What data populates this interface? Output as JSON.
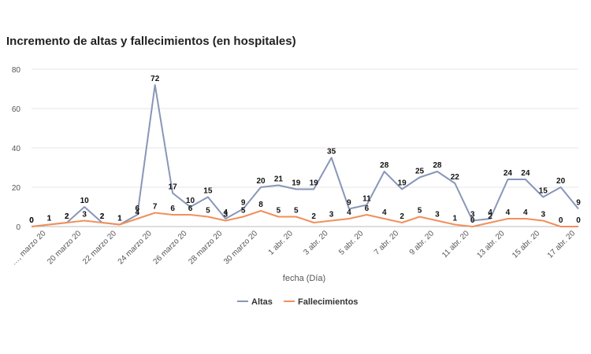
{
  "chart_data": {
    "type": "line",
    "title": "Incremento de altas y fallecimientos (en hospitales)",
    "xlabel": "fecha (Día)",
    "ylabel": "",
    "ylim": [
      0,
      80
    ],
    "yticks": [
      0,
      20,
      40,
      60,
      80
    ],
    "grid": true,
    "legend": "bottom-center",
    "x_tick_labels": [
      "…, marzo 20",
      "20 marzo 20",
      "22 marzo 20",
      "24 marzo 20",
      "26 marzo 20",
      "28 marzo 20",
      "30 marzo 20",
      "1 abr. 20",
      "3 abr. 20",
      "5 abr. 20",
      "7 abr. 20",
      "9 abr. 20",
      "11 abr. 20",
      "13 abr. 20",
      "15 abr. 20",
      "17 abr. 20"
    ],
    "series": [
      {
        "name": "Altas",
        "color": "#8996b9",
        "values": [
          0,
          1,
          2,
          10,
          2,
          1,
          6,
          72,
          17,
          10,
          15,
          4,
          9,
          20,
          21,
          19,
          19,
          35,
          9,
          11,
          28,
          19,
          25,
          28,
          22,
          3,
          4,
          24,
          24,
          15,
          20,
          9
        ]
      },
      {
        "name": "Fallecimientos",
        "color": "#f28f5c",
        "values": [
          0,
          1,
          2,
          3,
          2,
          1,
          4,
          7,
          6,
          6,
          5,
          3,
          5,
          8,
          5,
          5,
          2,
          3,
          4,
          6,
          4,
          2,
          5,
          3,
          1,
          0,
          2,
          4,
          4,
          3,
          0,
          0
        ]
      }
    ]
  }
}
